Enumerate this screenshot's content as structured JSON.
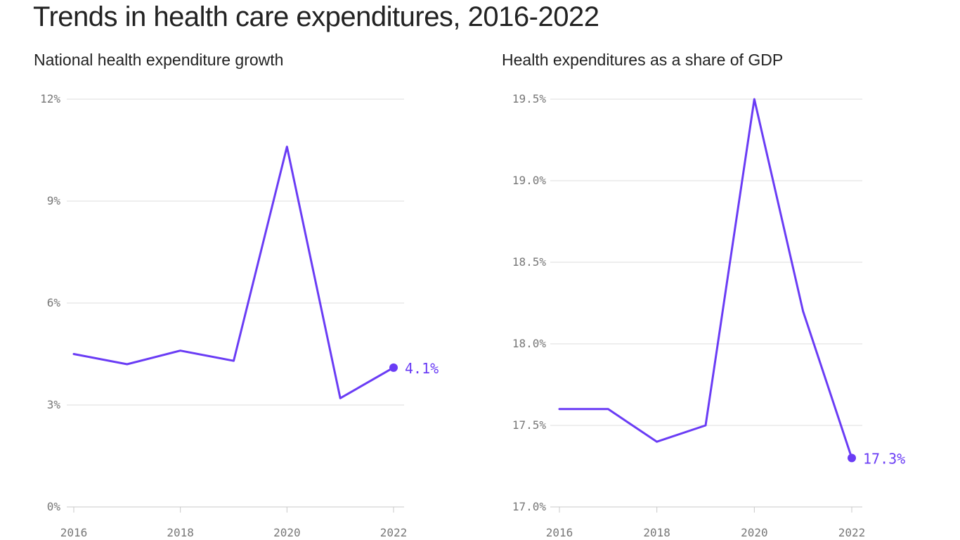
{
  "page": {
    "title": "Trends in health care expenditures, 2016-2022"
  },
  "colors": {
    "line": "#6a3cf5",
    "label": "#6a3cf5",
    "grid": "#dcdcdc",
    "tick": "#777777"
  },
  "chart_data": [
    {
      "type": "line",
      "title": "National health expenditure growth",
      "xlabel": "",
      "ylabel": "",
      "x": [
        2016,
        2017,
        2018,
        2019,
        2020,
        2021,
        2022
      ],
      "series": [
        {
          "name": "National health expenditure growth",
          "values": [
            4.5,
            4.2,
            4.6,
            4.3,
            10.6,
            3.2,
            4.1
          ]
        }
      ],
      "ylim": [
        0,
        12
      ],
      "xlim": [
        2016,
        2022
      ],
      "y_ticks": [
        0,
        3,
        6,
        9,
        12
      ],
      "y_tick_labels": [
        "0%",
        "3%",
        "6%",
        "9%",
        "12%"
      ],
      "x_ticks": [
        2016,
        2018,
        2020,
        2022
      ],
      "x_tick_labels": [
        "2016",
        "2018",
        "2020",
        "2022"
      ],
      "end_label": "4.1%",
      "grid": true
    },
    {
      "type": "line",
      "title": "Health expenditures as a share of GDP",
      "xlabel": "",
      "ylabel": "",
      "x": [
        2016,
        2017,
        2018,
        2019,
        2020,
        2021,
        2022
      ],
      "series": [
        {
          "name": "Health expenditures as a share of GDP",
          "values": [
            17.6,
            17.6,
            17.4,
            17.5,
            19.5,
            18.2,
            17.3
          ]
        }
      ],
      "ylim": [
        17.0,
        19.5
      ],
      "xlim": [
        2016,
        2022
      ],
      "y_ticks": [
        17.0,
        17.5,
        18.0,
        18.5,
        19.0,
        19.5
      ],
      "y_tick_labels": [
        "17.0%",
        "17.5%",
        "18.0%",
        "18.5%",
        "19.0%",
        "19.5%"
      ],
      "x_ticks": [
        2016,
        2018,
        2020,
        2022
      ],
      "x_tick_labels": [
        "2016",
        "2018",
        "2020",
        "2022"
      ],
      "end_label": "17.3%",
      "grid": true
    }
  ]
}
